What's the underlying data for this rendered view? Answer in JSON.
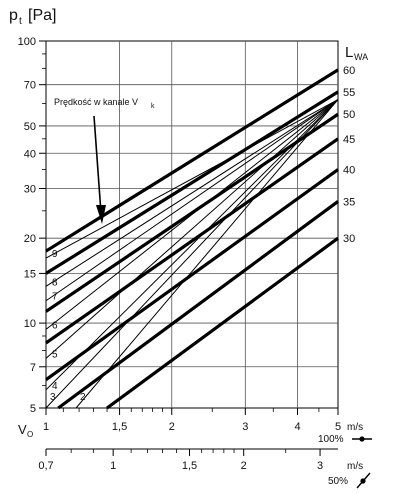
{
  "chart_data": {
    "type": "line",
    "title": "",
    "y_axis": {
      "label_main": "p",
      "label_sub": "t",
      "label_unit": "[Pa]",
      "scale": "log",
      "range": [
        5,
        100
      ],
      "ticks": [
        5,
        7,
        10,
        15,
        20,
        30,
        40,
        50,
        70,
        100
      ],
      "tick_labels": [
        "5",
        "7",
        "10",
        "15",
        "20",
        "30",
        "40",
        "50",
        "70",
        "100"
      ]
    },
    "x_axis": {
      "label_main": "V",
      "label_sub": "O",
      "scale": "log",
      "range": [
        1,
        5
      ],
      "ticks": [
        1,
        1.5,
        2,
        3,
        4,
        5
      ],
      "tick_labels": [
        "1",
        "1,5",
        "2",
        "3",
        "4",
        "5"
      ],
      "unit": "m/s",
      "note": "100%"
    },
    "x2_axis": {
      "scale": "log",
      "ticks": [
        0.7,
        1,
        1.5,
        2,
        3
      ],
      "tick_labels": [
        "0,7",
        "1",
        "1,5",
        "2",
        "3"
      ],
      "unit": "m/s",
      "note": "50%"
    },
    "grid": true,
    "lwa_label_main": "L",
    "lwa_label_sub": "WA",
    "annotation_text": "Prędkość w kanale V",
    "annotation_sub": "k",
    "series_thick": [
      {
        "label": "60",
        "points": [
          [
            1,
            18
          ],
          [
            5,
            79
          ]
        ]
      },
      {
        "label": "55",
        "points": [
          [
            1,
            15
          ],
          [
            5,
            66
          ]
        ]
      },
      {
        "label": "50",
        "points": [
          [
            1,
            11
          ],
          [
            5,
            55
          ]
        ]
      },
      {
        "label": "45",
        "points": [
          [
            1,
            8.5
          ],
          [
            5,
            45
          ]
        ]
      },
      {
        "label": "40",
        "points": [
          [
            1,
            6.3
          ],
          [
            5,
            35
          ]
        ]
      },
      {
        "label": "35",
        "points": [
          [
            1.07,
            5
          ],
          [
            5,
            27
          ]
        ]
      },
      {
        "label": "30",
        "points": [
          [
            1.4,
            5
          ],
          [
            5,
            20
          ]
        ]
      }
    ],
    "series_thin": [
      {
        "label": "9",
        "points": [
          [
            1,
            17
          ],
          [
            5,
            62
          ]
        ]
      },
      {
        "label": "8",
        "points": [
          [
            1,
            13.5
          ],
          [
            5,
            62
          ]
        ]
      },
      {
        "label": "7",
        "points": [
          [
            1,
            12
          ],
          [
            5,
            62
          ]
        ]
      },
      {
        "label": "6",
        "points": [
          [
            1,
            9.5
          ],
          [
            5,
            62
          ]
        ]
      },
      {
        "label": "5",
        "points": [
          [
            1,
            7.5
          ],
          [
            5,
            62
          ]
        ]
      },
      {
        "label": "4",
        "points": [
          [
            1,
            5.8
          ],
          [
            5,
            62
          ]
        ]
      },
      {
        "label": "3",
        "points": [
          [
            1,
            5
          ],
          [
            5,
            62
          ]
        ]
      },
      {
        "label": "2",
        "points": [
          [
            1.18,
            5
          ],
          [
            5,
            62
          ]
        ]
      }
    ]
  }
}
